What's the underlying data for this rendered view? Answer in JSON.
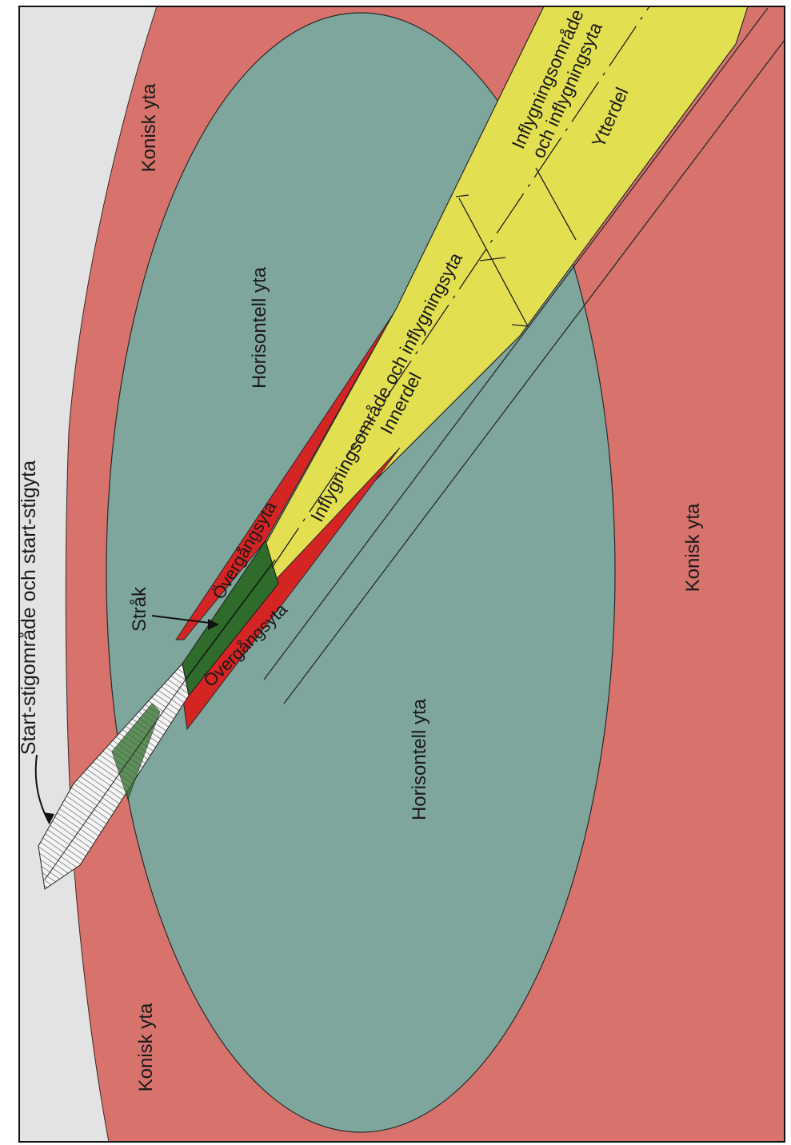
{
  "colors": {
    "background": "#e3e3e3",
    "conical_surface": "#d8726c",
    "horizontal_surface": "#7fa69d",
    "transitional_surface": "#d42424",
    "approach_surface": "#e2e051",
    "runway_strip": "#2f6b2a",
    "takeoff_area": "#f4f4f4",
    "line": "#2a2a2a",
    "frame": "#111111"
  },
  "labels": {
    "takeoff_climb": "Start-stigområde och start-stigyta",
    "conical_top": "Konisk yta",
    "conical_bottom": "Konisk yta",
    "conical_right": "Konisk yta",
    "horizontal_upper": "Horisontell yta",
    "horizontal_lower": "Horisontell yta",
    "strip": "Stråk",
    "transitional_upper": "Övergångsyta",
    "transitional_lower": "Övergångsyta",
    "approach_inner_1": "Inflygningsområde och inflygningsyta",
    "approach_inner_2": "Innerdel",
    "approach_outer_1": "Inflygningsområde",
    "approach_outer_2": "och inflygningsyta",
    "approach_outer_3": "Ytterdel"
  }
}
